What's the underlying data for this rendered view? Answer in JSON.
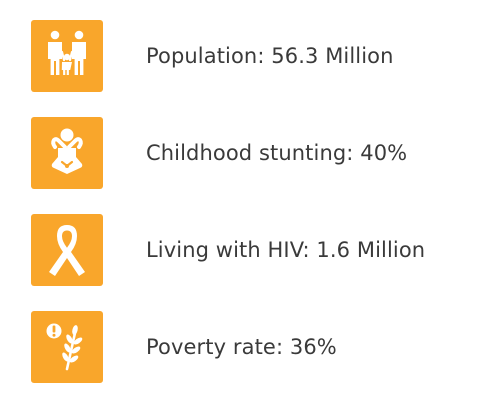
{
  "colors": {
    "tile": "#F9A62B",
    "icon": "#ffffff",
    "text": "#3a3a3a"
  },
  "stats": [
    {
      "icon": "family-icon",
      "text": "Population: 56.3 Million"
    },
    {
      "icon": "baby-icon",
      "text": "Childhood stunting: 40%"
    },
    {
      "icon": "awareness-ribbon-icon",
      "text": "Living with HIV: 1.6 Million"
    },
    {
      "icon": "wheat-alert-icon",
      "text": "Poverty rate: 36%"
    }
  ]
}
